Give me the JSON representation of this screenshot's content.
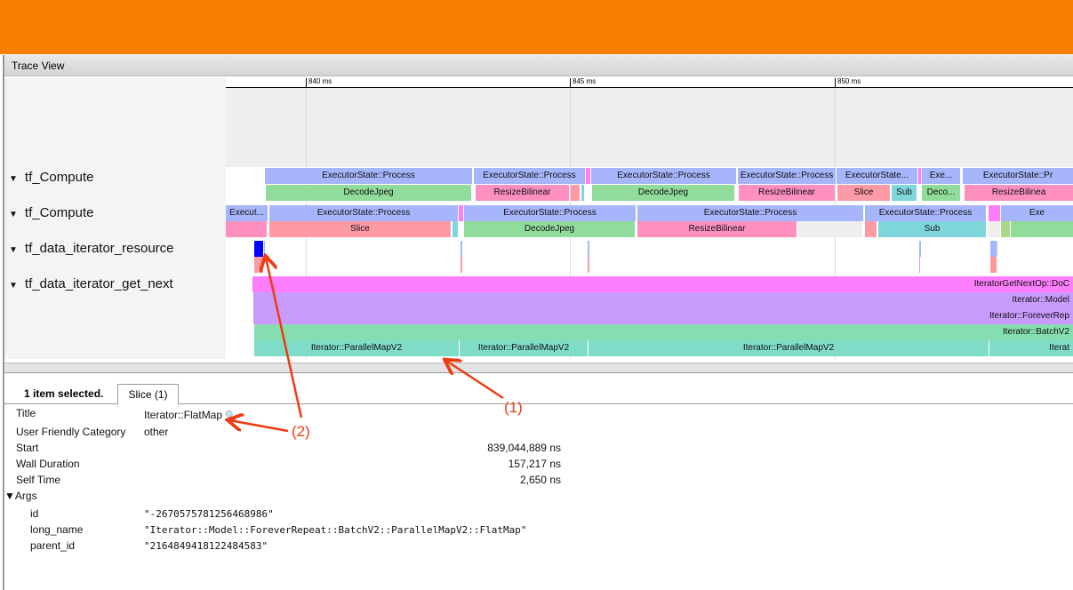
{
  "header": {
    "title": "Trace View"
  },
  "ruler": {
    "ticks": [
      "840 ms",
      "845 ms",
      "850 ms"
    ]
  },
  "threads": [
    {
      "name": "tf_Compute"
    },
    {
      "name": "tf_Compute"
    },
    {
      "name": "tf_data_iterator_resource"
    },
    {
      "name": "tf_data_iterator_get_next"
    }
  ],
  "slices": {
    "row1_top": [
      "ExecutorState::Process",
      "ExecutorState::Process",
      "",
      "ExecutorState::Process",
      "ExecutorState::Process",
      "ExecutorState...",
      "",
      "Exe...",
      "ExecutorState::Pr"
    ],
    "row1_child": [
      "DecodeJpeg",
      "ResizeBilinear",
      "",
      "",
      "DecodeJpeg",
      "ResizeBilinear",
      "Slice",
      "Sub",
      "Deco...",
      "ResizeBilinea"
    ],
    "row2_top": [
      "Execut...",
      "ExecutorState::Process",
      "",
      "ExecutorState::Process",
      "ExecutorState::Process",
      "ExecutorState::Process",
      "",
      "Exe"
    ],
    "row2_child": [
      "",
      "Slice",
      "",
      "DecodeJpeg",
      "ResizeBilinear",
      "",
      "",
      "Sub",
      "",
      "",
      ""
    ],
    "row4": [
      "IteratorGetNextOp::DoC",
      "Iterator::Model",
      "Iterator::ForeverRep",
      "Iterator::BatchV2"
    ],
    "row4_parallel": [
      "Iterator::ParallelMapV2",
      "Iterator::ParallelMapV2",
      "Iterator::ParallelMapV2",
      "Iterat"
    ]
  },
  "selection": {
    "summary": "1 item selected.",
    "tab": "Slice (1)"
  },
  "details": [
    {
      "label": "Title",
      "value": "Iterator::FlatMap"
    },
    {
      "label": "User Friendly Category",
      "value": "other"
    },
    {
      "label": "Start",
      "value": "839,044,889 ns"
    },
    {
      "label": "Wall Duration",
      "value": "157,217 ns"
    },
    {
      "label": "Self Time",
      "value": "2,650 ns"
    }
  ],
  "args": {
    "label": "Args",
    "items": [
      {
        "key": "id",
        "value": "\"-2670575781256468986\""
      },
      {
        "key": "long_name",
        "value": "\"Iterator::Model::ForeverRepeat::BatchV2::ParallelMapV2::FlatMap\""
      },
      {
        "key": "parent_id",
        "value": "\"2164849418122484583\""
      }
    ]
  },
  "annotations": [
    "(1)",
    "(2)"
  ],
  "colors": {
    "topbar": "#f77f00",
    "executor": "#a7b5fb",
    "decode": "#91dc9b",
    "resize": "#fe90bf",
    "slice": "#fe99a6",
    "sub": "#7fd7dc",
    "selected": "#0000ff",
    "annotation": "#f03a10"
  }
}
